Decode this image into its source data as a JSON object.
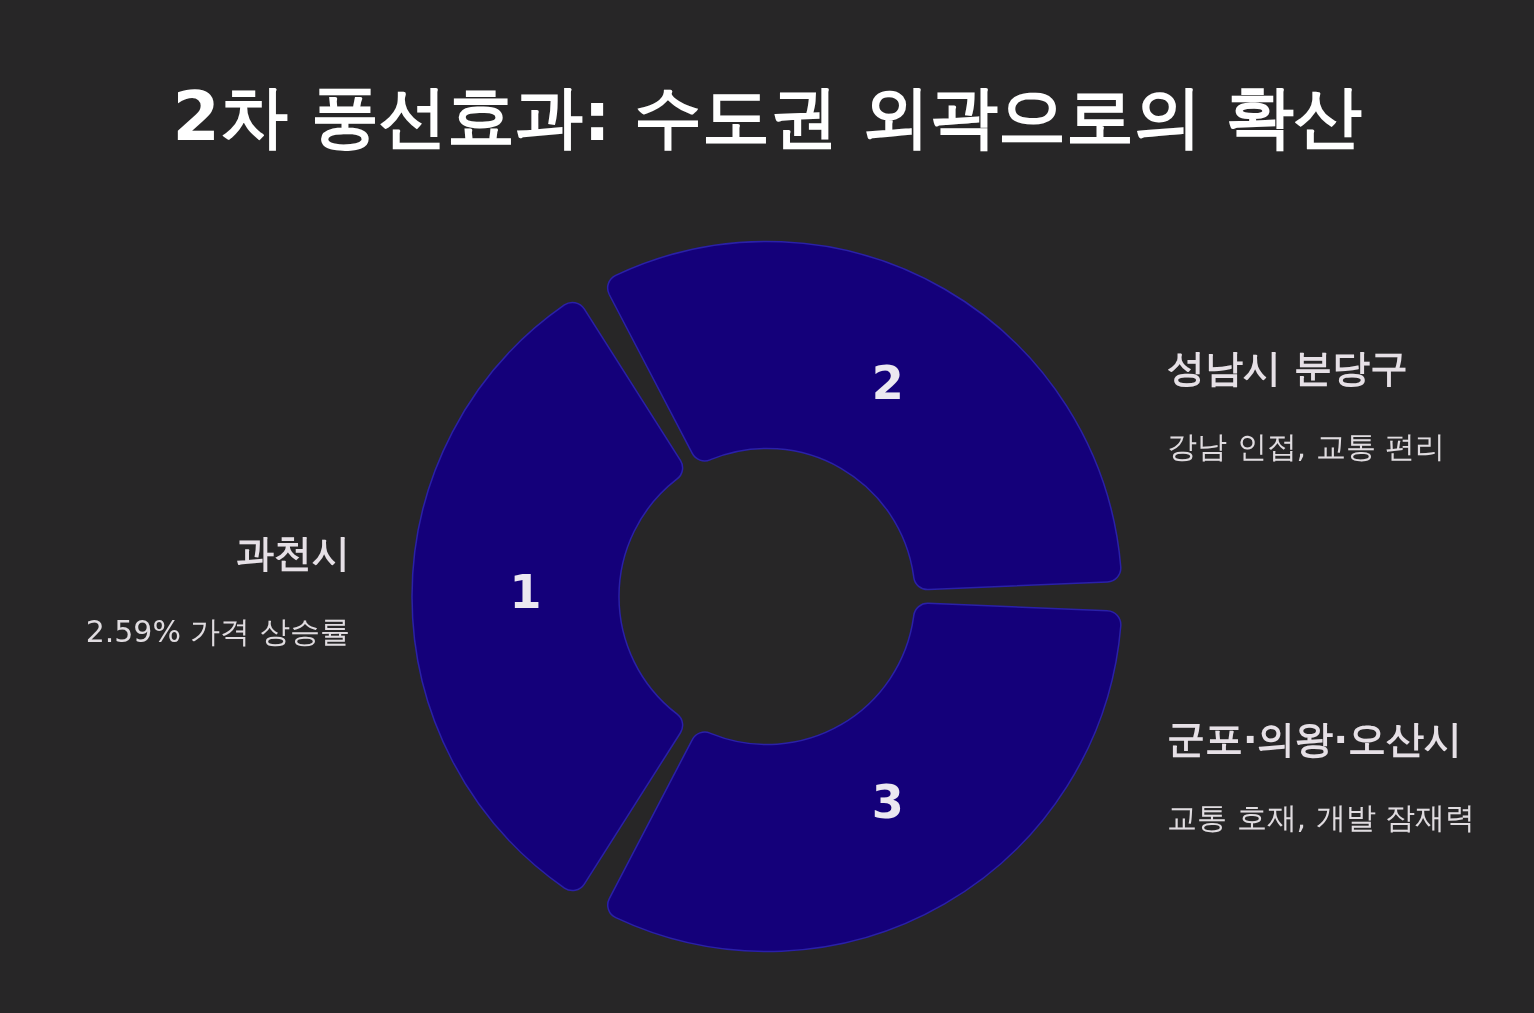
{
  "chart_data": {
    "type": "donut",
    "title": "2차 풍선효과: 수도권 외곽으로의 확산",
    "categories": [
      "과천시",
      "성남시 분당구",
      "군포·의왕·오산시"
    ],
    "values": [
      33.33,
      33.33,
      33.34
    ],
    "colors": [
      "#14007a",
      "#14007a",
      "#14007a"
    ],
    "annotations": [
      "1",
      "2",
      "3",
      "2.59% 가격 상승률",
      "강남 인접, 교통 편리",
      "교통 호재, 개발 잠재력"
    ],
    "legend": false
  }
}
